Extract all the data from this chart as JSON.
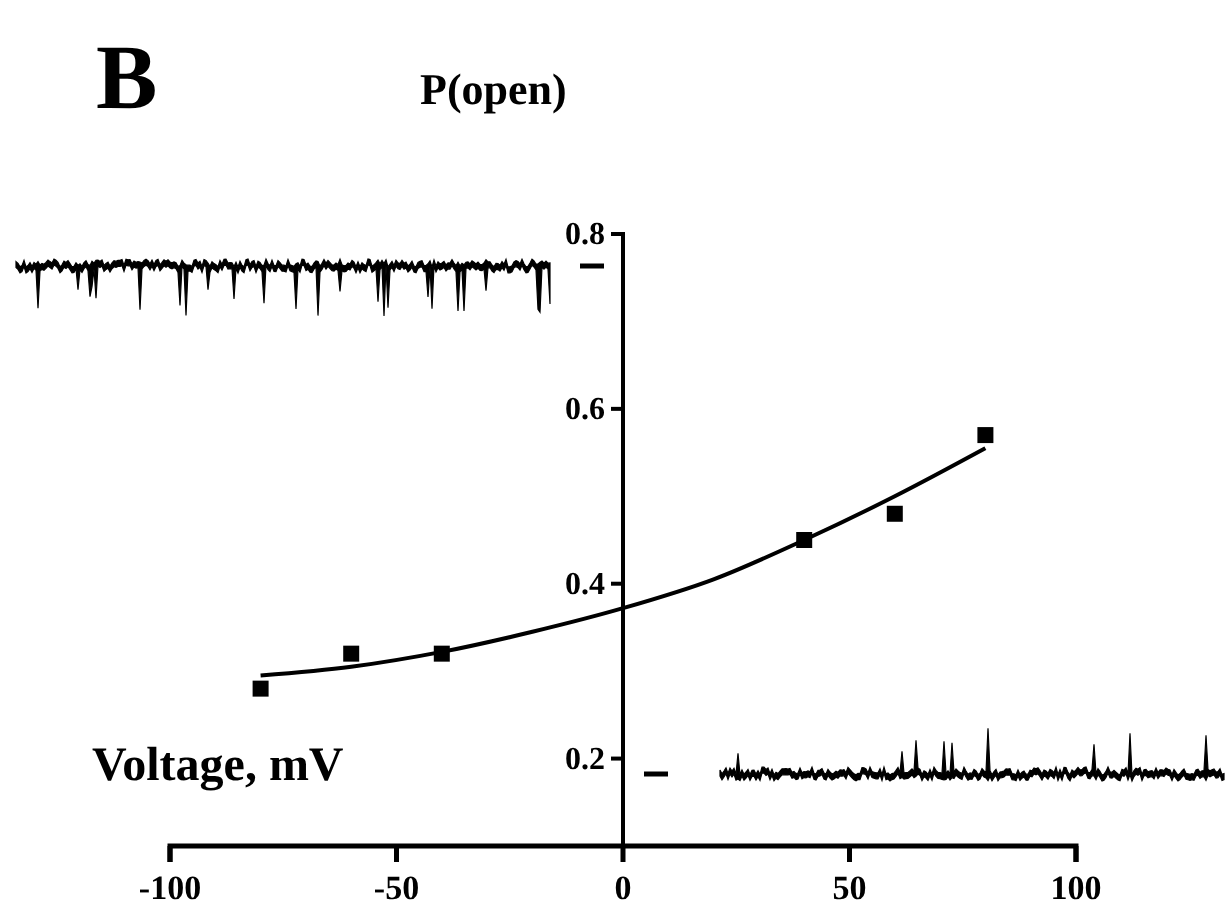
{
  "chart_data": {
    "type": "scatter",
    "ylabel": "P(open)",
    "xlabel": "Voltage, mV",
    "annotations": [
      "B"
    ],
    "xlim": [
      -100,
      100
    ],
    "xticks": [
      -100,
      -50,
      0,
      50,
      100
    ],
    "ylim": [
      0.1,
      0.8
    ],
    "yticks": [
      0.2,
      0.4,
      0.6,
      0.8
    ],
    "grid": false,
    "series": [
      {
        "marker": "square",
        "color": "#000000",
        "x": [
          -80,
          -60,
          -40,
          40,
          60,
          80
        ],
        "values": [
          0.28,
          0.32,
          0.32,
          0.45,
          0.48,
          0.57
        ]
      },
      {
        "type": "line",
        "marker": "none",
        "line_style": "solid",
        "color": "#000000",
        "x": [
          -80,
          -60,
          -40,
          -20,
          0,
          20,
          40,
          60,
          80
        ],
        "values": [
          0.295,
          0.305,
          0.322,
          0.345,
          0.372,
          0.405,
          0.45,
          0.5,
          0.555
        ]
      }
    ]
  }
}
